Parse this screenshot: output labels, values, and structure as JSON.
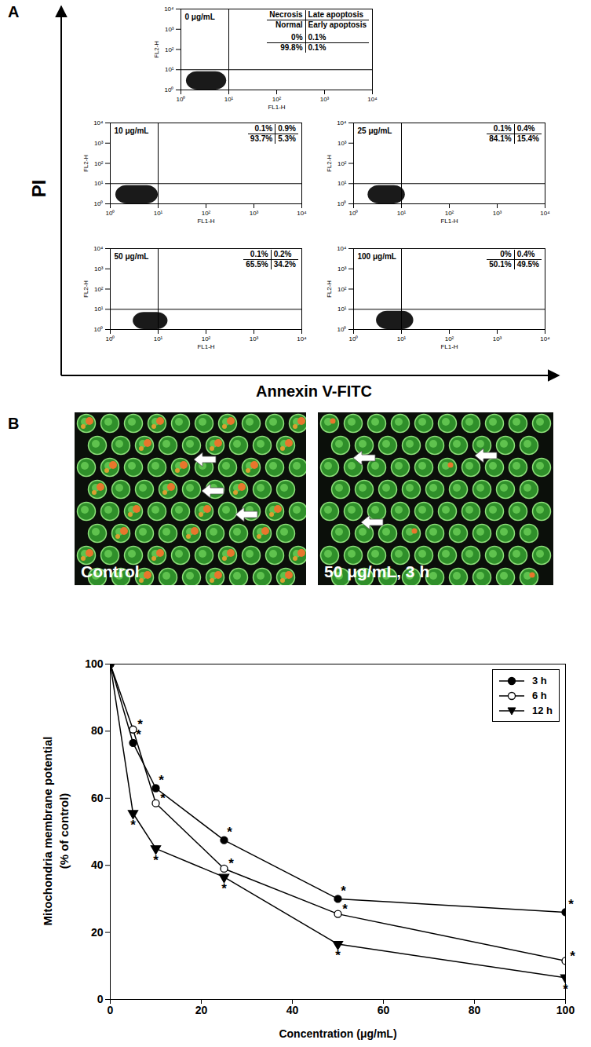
{
  "figure": {
    "panel_labels": [
      "A",
      "B"
    ],
    "shared_y_label": "PI",
    "shared_x_label": "Annexin V-FITC",
    "images": [
      {
        "caption": "Control"
      },
      {
        "caption": "50 μg/mL, 3 h"
      }
    ]
  },
  "chart_data": [
    {
      "type": "scatter",
      "title": "0 μg/mL",
      "xlabel": "FL1-H",
      "ylabel": "FL2-H",
      "log": true,
      "xlim": [
        1,
        10000
      ],
      "ylim": [
        1,
        10000
      ],
      "xticks": [
        {
          "value": 1,
          "label": "10⁰"
        },
        {
          "value": 10,
          "label": "10¹"
        },
        {
          "value": 100,
          "label": "10²"
        },
        {
          "value": 1000,
          "label": "10³"
        },
        {
          "value": 10000,
          "label": "10⁴"
        }
      ],
      "yticks": [
        {
          "value": 1,
          "label": "10⁰"
        },
        {
          "value": 10,
          "label": "10¹"
        },
        {
          "value": 100,
          "label": "10²"
        },
        {
          "value": 1000,
          "label": "10³"
        },
        {
          "value": 10000,
          "label": "10⁴"
        }
      ],
      "gate": {
        "x": 10,
        "y": 10
      },
      "population": {
        "x": [
          1.3,
          9
        ],
        "y": [
          1,
          8
        ]
      },
      "quadrants": {
        "names": [
          "Necrosis",
          "Late apoptosis",
          "Normal",
          "Early apoptosis"
        ],
        "values": [
          0,
          0.1,
          99.8,
          0.1
        ],
        "value_labels": [
          "0%",
          "0.1%",
          "99.8%",
          "0.1%"
        ]
      }
    },
    {
      "type": "scatter",
      "title": "10 μg/mL",
      "xlabel": "FL1-H",
      "ylabel": "FL2-H",
      "log": true,
      "xlim": [
        1,
        10000
      ],
      "ylim": [
        1,
        10000
      ],
      "xticks": [
        {
          "value": 1,
          "label": "10⁰"
        },
        {
          "value": 10,
          "label": "10¹"
        },
        {
          "value": 100,
          "label": "10²"
        },
        {
          "value": 1000,
          "label": "10³"
        },
        {
          "value": 10000,
          "label": "10⁴"
        }
      ],
      "yticks": [
        {
          "value": 1,
          "label": "10⁰"
        },
        {
          "value": 10,
          "label": "10¹"
        },
        {
          "value": 100,
          "label": "10²"
        },
        {
          "value": 1000,
          "label": "10³"
        },
        {
          "value": 10000,
          "label": "10⁴"
        }
      ],
      "gate": {
        "x": 10,
        "y": 10
      },
      "population": {
        "x": [
          1.3,
          10
        ],
        "y": [
          1,
          8
        ]
      },
      "quadrants": {
        "values": [
          0.1,
          0.9,
          93.7,
          5.3
        ],
        "value_labels": [
          "0.1%",
          "0.9%",
          "93.7%",
          "5.3%"
        ]
      }
    },
    {
      "type": "scatter",
      "title": "25 μg/mL",
      "xlabel": "FL1-H",
      "ylabel": "FL2-H",
      "log": true,
      "xlim": [
        1,
        10000
      ],
      "ylim": [
        1,
        10000
      ],
      "xticks": [
        {
          "value": 1,
          "label": "10⁰"
        },
        {
          "value": 10,
          "label": "10¹"
        },
        {
          "value": 100,
          "label": "10²"
        },
        {
          "value": 1000,
          "label": "10³"
        },
        {
          "value": 10000,
          "label": "10⁴"
        }
      ],
      "yticks": [
        {
          "value": 1,
          "label": "10⁰"
        },
        {
          "value": 10,
          "label": "10¹"
        },
        {
          "value": 100,
          "label": "10²"
        },
        {
          "value": 1000,
          "label": "10³"
        },
        {
          "value": 10000,
          "label": "10⁴"
        }
      ],
      "gate": {
        "x": 10,
        "y": 10
      },
      "population": {
        "x": [
          2,
          12
        ],
        "y": [
          1,
          8
        ]
      },
      "quadrants": {
        "values": [
          0.1,
          0.4,
          84.1,
          15.4
        ],
        "value_labels": [
          "0.1%",
          "0.4%",
          "84.1%",
          "15.4%"
        ]
      }
    },
    {
      "type": "scatter",
      "title": "50 μg/mL",
      "xlabel": "FL1-H",
      "ylabel": "FL2-H",
      "log": true,
      "xlim": [
        1,
        10000
      ],
      "ylim": [
        1,
        10000
      ],
      "xticks": [
        {
          "value": 1,
          "label": "10⁰"
        },
        {
          "value": 10,
          "label": "10¹"
        },
        {
          "value": 100,
          "label": "10²"
        },
        {
          "value": 1000,
          "label": "10³"
        },
        {
          "value": 10000,
          "label": "10⁴"
        }
      ],
      "yticks": [
        {
          "value": 1,
          "label": "10⁰"
        },
        {
          "value": 10,
          "label": "10¹"
        },
        {
          "value": 100,
          "label": "10²"
        },
        {
          "value": 1000,
          "label": "10³"
        },
        {
          "value": 10000,
          "label": "10⁴"
        }
      ],
      "gate": {
        "x": 10,
        "y": 10
      },
      "population": {
        "x": [
          3,
          16
        ],
        "y": [
          1,
          7
        ]
      },
      "quadrants": {
        "values": [
          0.1,
          0.2,
          65.5,
          34.2
        ],
        "value_labels": [
          "0.1%",
          "0.2%",
          "65.5%",
          "34.2%"
        ]
      }
    },
    {
      "type": "scatter",
      "title": "100 μg/mL",
      "xlabel": "FL1-H",
      "ylabel": "FL2-H",
      "log": true,
      "xlim": [
        1,
        10000
      ],
      "ylim": [
        1,
        10000
      ],
      "xticks": [
        {
          "value": 1,
          "label": "10⁰"
        },
        {
          "value": 10,
          "label": "10¹"
        },
        {
          "value": 100,
          "label": "10²"
        },
        {
          "value": 1000,
          "label": "10³"
        },
        {
          "value": 10000,
          "label": "10⁴"
        }
      ],
      "yticks": [
        {
          "value": 1,
          "label": "10⁰"
        },
        {
          "value": 10,
          "label": "10¹"
        },
        {
          "value": 100,
          "label": "10²"
        },
        {
          "value": 1000,
          "label": "10³"
        },
        {
          "value": 10000,
          "label": "10⁴"
        }
      ],
      "gate": {
        "x": 10,
        "y": 10
      },
      "population": {
        "x": [
          3,
          18
        ],
        "y": [
          1,
          8
        ]
      },
      "quadrants": {
        "values": [
          0,
          0.4,
          50.1,
          49.5
        ],
        "value_labels": [
          "0%",
          "0.4%",
          "50.1%",
          "49.5%"
        ]
      }
    },
    {
      "type": "line",
      "xlabel": "Concentration (μg/mL)",
      "ylabel": "Mitochondria membrane potential\n(% of control)",
      "xlim": [
        0,
        100
      ],
      "ylim": [
        0,
        100
      ],
      "xticks": [
        0,
        20,
        40,
        60,
        80,
        100
      ],
      "yticks": [
        0,
        20,
        40,
        60,
        80,
        100
      ],
      "legend": "upper right",
      "x": [
        0,
        5,
        10,
        25,
        50,
        100
      ],
      "series": [
        {
          "name": "3 h",
          "color": "#000000",
          "marker": "circle",
          "line_style": "solid",
          "values": [
            100,
            76.5,
            63,
            47.5,
            30,
            26
          ],
          "annotation": [
            null,
            "*",
            "*",
            "*",
            "*",
            "*"
          ]
        },
        {
          "name": "6 h",
          "color": "#000000",
          "marker": "open circle",
          "line_style": "solid",
          "values": [
            100,
            80.5,
            58.5,
            39,
            25.5,
            11.5
          ],
          "annotation": [
            null,
            "*",
            "*",
            "*",
            "*",
            "*"
          ]
        },
        {
          "name": "12 h",
          "color": "#000000",
          "marker": "triangle-down",
          "line_style": "solid",
          "values": [
            100,
            55.5,
            45,
            36.5,
            16.5,
            6.5
          ],
          "annotation": [
            null,
            "*",
            "*",
            "*",
            "*",
            "*"
          ]
        }
      ]
    }
  ]
}
